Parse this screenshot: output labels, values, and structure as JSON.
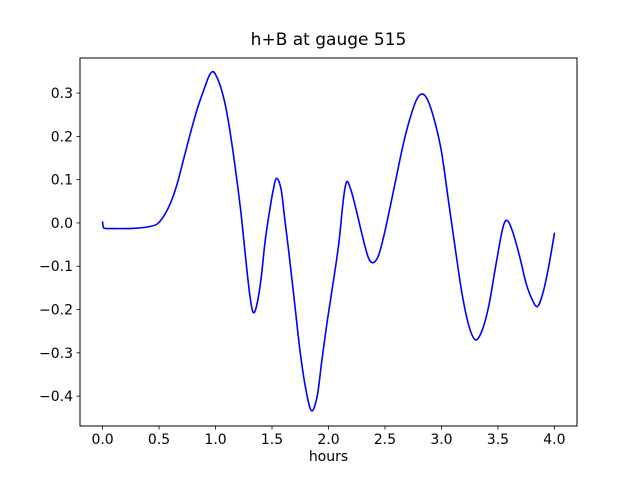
{
  "window": {
    "background": "#ffffff"
  },
  "chart_data": {
    "type": "line",
    "title": "h+B at gauge 515",
    "xlabel": "hours",
    "ylabel": "",
    "xlim": [
      -0.2,
      4.2
    ],
    "ylim": [
      -0.469,
      0.381
    ],
    "xticks": [
      0.0,
      0.5,
      1.0,
      1.5,
      2.0,
      2.5,
      3.0,
      3.5,
      4.0
    ],
    "xtick_labels": [
      "0.0",
      "0.5",
      "1.0",
      "1.5",
      "2.0",
      "2.5",
      "3.0",
      "3.5",
      "4.0"
    ],
    "yticks": [
      0.3,
      0.2,
      0.1,
      0.0,
      -0.1,
      -0.2,
      -0.3,
      -0.4
    ],
    "ytick_labels": [
      "0.3",
      "0.2",
      "0.1",
      "0.0",
      "−0.1",
      "−0.2",
      "−0.3",
      "−0.4"
    ],
    "grid": false,
    "legend_position": "none",
    "line_color": "#0000ff",
    "axes_color": "#000000",
    "series": [
      {
        "name": "h+B",
        "color": "#0000ff",
        "x": [
          0.0,
          0.005,
          0.02,
          0.1,
          0.2,
          0.3,
          0.4,
          0.48,
          0.54,
          0.6,
          0.66,
          0.72,
          0.78,
          0.84,
          0.9,
          0.94,
          0.97,
          1.0,
          1.05,
          1.1,
          1.16,
          1.22,
          1.26,
          1.3,
          1.33,
          1.36,
          1.4,
          1.44,
          1.48,
          1.51,
          1.54,
          1.58,
          1.61,
          1.65,
          1.7,
          1.75,
          1.8,
          1.85,
          1.9,
          1.94,
          1.99,
          2.04,
          2.09,
          2.13,
          2.16,
          2.2,
          2.25,
          2.3,
          2.35,
          2.39,
          2.44,
          2.49,
          2.54,
          2.6,
          2.66,
          2.72,
          2.78,
          2.83,
          2.88,
          2.94,
          3.0,
          3.06,
          3.12,
          3.18,
          3.24,
          3.3,
          3.36,
          3.42,
          3.48,
          3.54,
          3.58,
          3.63,
          3.69,
          3.75,
          3.8,
          3.85,
          3.9,
          3.95,
          4.0
        ],
        "y": [
          0.002,
          -0.008,
          -0.0125,
          -0.013,
          -0.013,
          -0.012,
          -0.009,
          -0.003,
          0.015,
          0.045,
          0.09,
          0.15,
          0.21,
          0.265,
          0.31,
          0.338,
          0.349,
          0.343,
          0.31,
          0.255,
          0.155,
          0.035,
          -0.065,
          -0.16,
          -0.205,
          -0.195,
          -0.135,
          -0.04,
          0.03,
          0.075,
          0.103,
          0.078,
          0.015,
          -0.07,
          -0.185,
          -0.3,
          -0.385,
          -0.434,
          -0.4,
          -0.32,
          -0.225,
          -0.14,
          -0.05,
          0.05,
          0.095,
          0.075,
          0.025,
          -0.03,
          -0.078,
          -0.092,
          -0.077,
          -0.03,
          0.03,
          0.105,
          0.18,
          0.24,
          0.285,
          0.298,
          0.283,
          0.235,
          0.165,
          0.055,
          -0.055,
          -0.16,
          -0.235,
          -0.27,
          -0.248,
          -0.19,
          -0.1,
          -0.015,
          0.006,
          -0.02,
          -0.075,
          -0.14,
          -0.175,
          -0.193,
          -0.16,
          -0.1,
          -0.024
        ]
      }
    ]
  }
}
